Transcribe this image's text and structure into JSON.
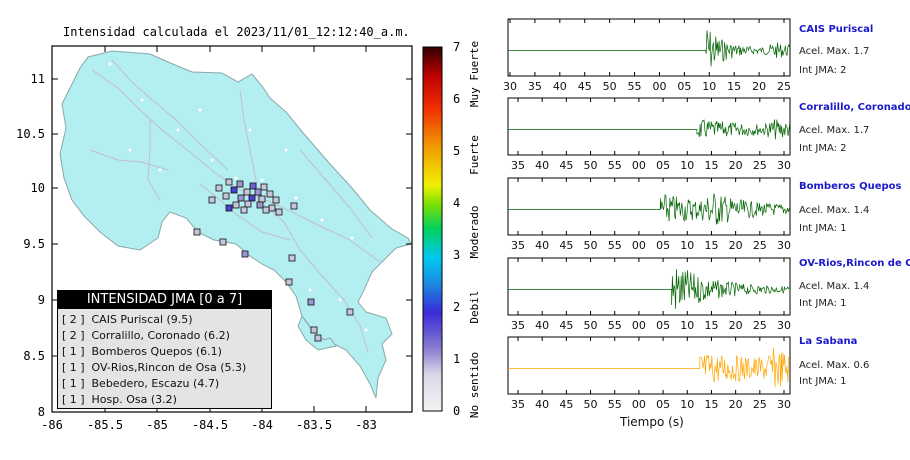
{
  "map": {
    "title": "Intensidad calculada el 2023/11/01_12:12:40_a.m.",
    "lat_ticks": [
      "11",
      "10.5",
      "10",
      "9.5",
      "9",
      "8.5",
      "8"
    ],
    "lon_ticks": [
      "-86",
      "-85.5",
      "-85",
      "-84.5",
      "-84",
      "-83.5",
      "-83"
    ],
    "land_color": "#b3eef0",
    "border_color": "#8aa8a8"
  },
  "colorbar": {
    "ticks": [
      "0",
      "1",
      "2",
      "3",
      "4",
      "5",
      "6",
      "7"
    ],
    "labels": [
      "No sentido",
      "Debil",
      "Moderado",
      "Fuerte",
      "Muy Fuerte"
    ]
  },
  "legend": {
    "title": "INTENSIDAD JMA [0 a 7]",
    "items": [
      {
        "level": "[ 2 ]",
        "text": "CAIS Puriscal (9.5)"
      },
      {
        "level": "[ 2 ]",
        "text": "Corralillo, Coronado (6.2)"
      },
      {
        "level": "[ 1 ]",
        "text": "Bomberos Quepos (6.1)"
      },
      {
        "level": "[ 1 ]",
        "text": "OV-Rios,Rincon de Osa (5.3)"
      },
      {
        "level": "[ 1 ]",
        "text": "Bebedero, Escazu (4.7)"
      },
      {
        "level": "[ 1 ]",
        "text": "Hosp. Osa (3.2)"
      }
    ]
  },
  "stations": [
    {
      "name": "CAIS Puriscal",
      "accel": "Acel. Max. 1.7",
      "jma": "Int JMA: 2",
      "ticks": [
        "30",
        "35",
        "40",
        "45",
        "50",
        "55",
        "00",
        "05",
        "10",
        "15",
        "20",
        "25"
      ],
      "color": "#006400"
    },
    {
      "name": "Corralillo, Coronado",
      "accel": "Acel. Max. 1.7",
      "jma": "Int JMA: 2",
      "ticks": [
        "35",
        "40",
        "45",
        "50",
        "55",
        "00",
        "05",
        "10",
        "15",
        "20",
        "25",
        "30"
      ],
      "color": "#006400"
    },
    {
      "name": "Bomberos Quepos",
      "accel": "Acel. Max. 1.4",
      "jma": "Int JMA: 1",
      "ticks": [
        "35",
        "40",
        "45",
        "50",
        "55",
        "00",
        "05",
        "10",
        "15",
        "20",
        "25",
        "30"
      ],
      "color": "#006400"
    },
    {
      "name": "OV-Rios,Rincon de Osa",
      "accel": "Acel. Max. 1.4",
      "jma": "Int JMA: 1",
      "ticks": [
        "35",
        "40",
        "45",
        "50",
        "55",
        "00",
        "05",
        "10",
        "15",
        "20",
        "25",
        "30"
      ],
      "color": "#006400"
    },
    {
      "name": "La Sabana",
      "accel": "Acel. Max. 0.6",
      "jma": "Int JMA: 1",
      "ticks": [
        "35",
        "40",
        "45",
        "50",
        "55",
        "00",
        "05",
        "10",
        "15",
        "20",
        "25",
        "30"
      ],
      "color": "#ffa500"
    }
  ],
  "time_axis_label": "Tiempo (s)"
}
